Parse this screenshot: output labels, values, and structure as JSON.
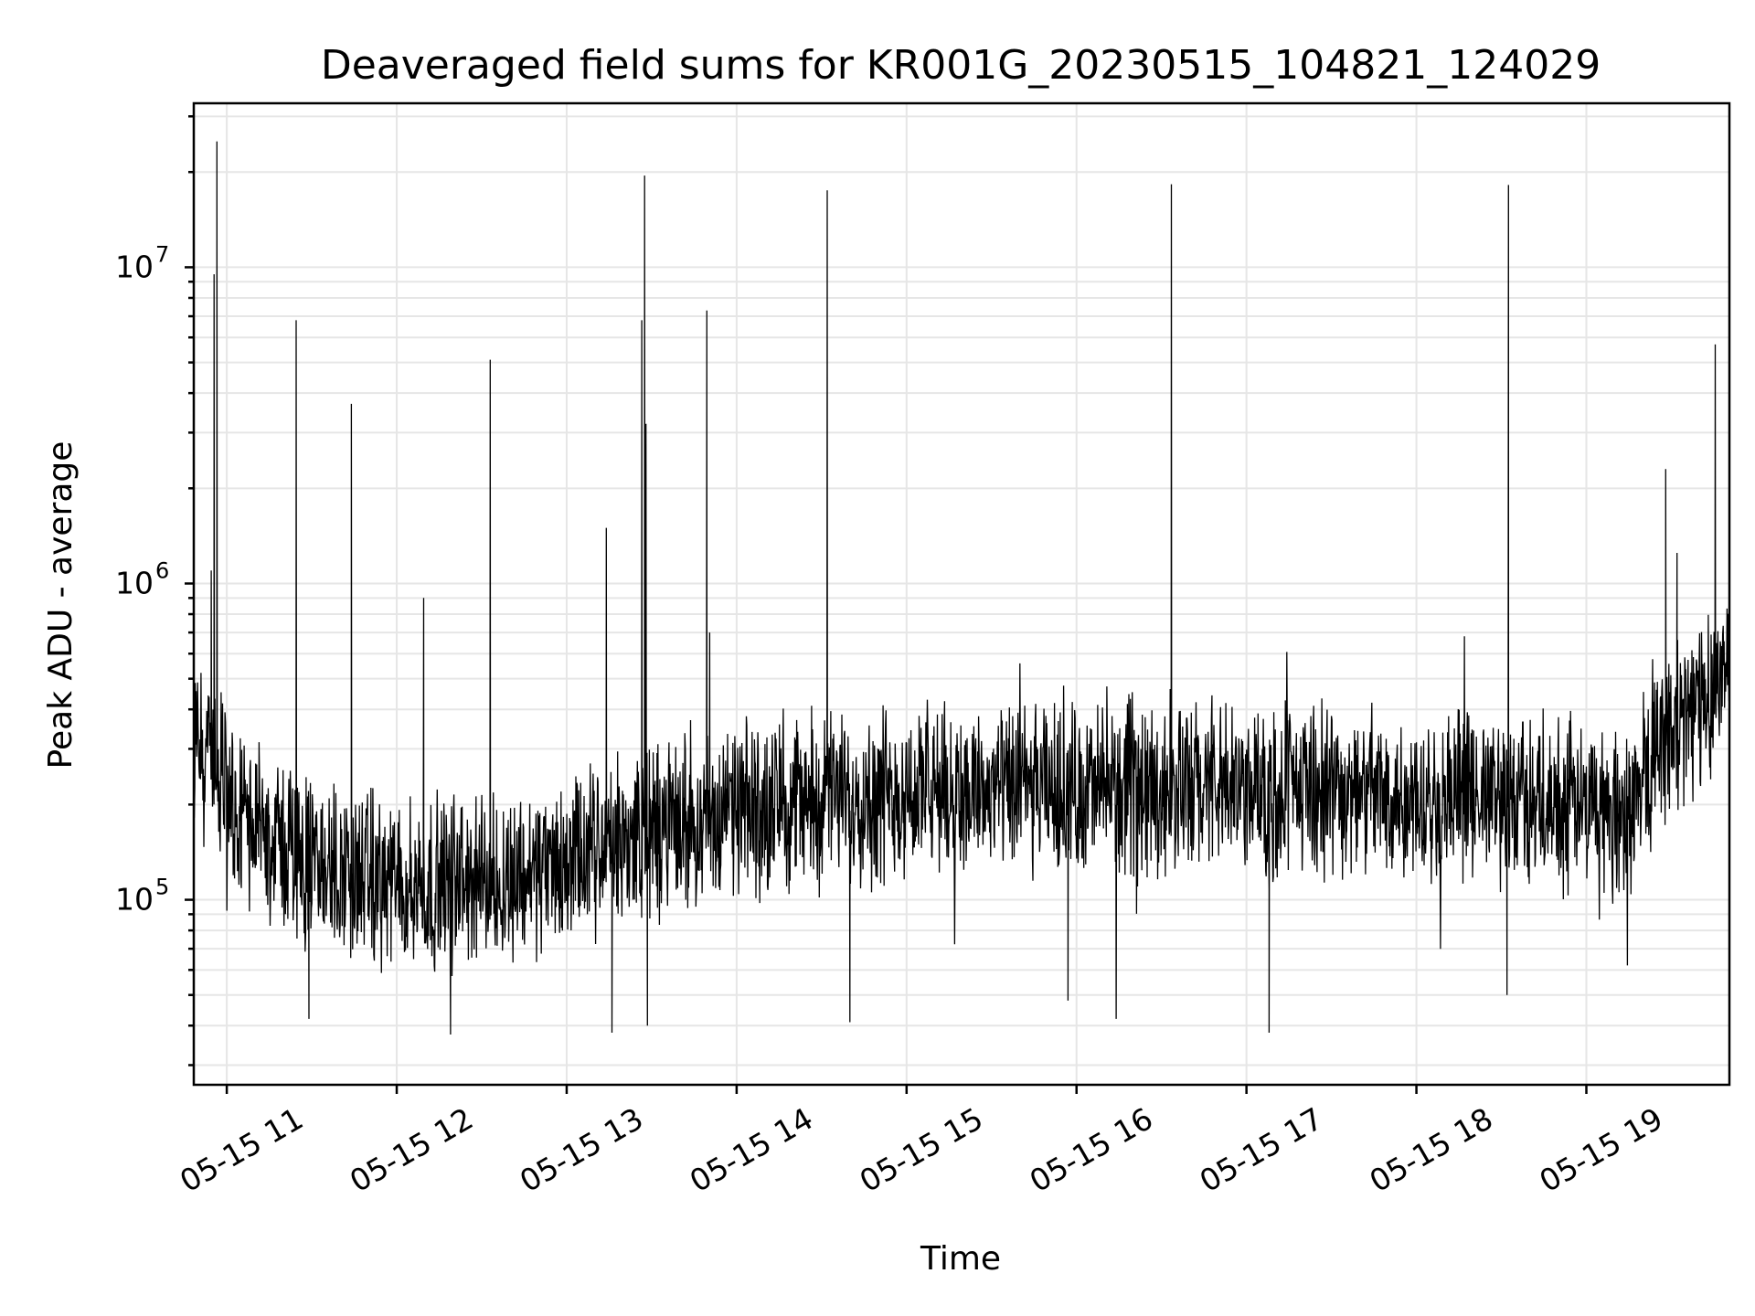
{
  "chart_data": {
    "type": "line",
    "title": "Deaveraged field sums for KR001G_20230515_104821_124029",
    "xlabel": "Time",
    "ylabel": "Peak ADU - average",
    "x_scale": "time",
    "y_scale": "log",
    "xlim": [
      "2023-05-15 10:48:21",
      "2023-05-15 19:50:30"
    ],
    "ylim": [
      26000,
      33000000
    ],
    "grid": true,
    "legend": null,
    "line_color": "#000000",
    "x_ticks": [
      {
        "value": "2023-05-15 11:00",
        "label": "05-15 11"
      },
      {
        "value": "2023-05-15 12:00",
        "label": "05-15 12"
      },
      {
        "value": "2023-05-15 13:00",
        "label": "05-15 13"
      },
      {
        "value": "2023-05-15 14:00",
        "label": "05-15 14"
      },
      {
        "value": "2023-05-15 15:00",
        "label": "05-15 15"
      },
      {
        "value": "2023-05-15 16:00",
        "label": "05-15 16"
      },
      {
        "value": "2023-05-15 17:00",
        "label": "05-15 17"
      },
      {
        "value": "2023-05-15 18:00",
        "label": "05-15 18"
      },
      {
        "value": "2023-05-15 19:00",
        "label": "05-15 19"
      }
    ],
    "y_ticks": [
      {
        "value": 100000,
        "base": "10",
        "exp": "5"
      },
      {
        "value": 1000000,
        "base": "10",
        "exp": "6"
      },
      {
        "value": 10000000,
        "base": "10",
        "exp": "7"
      }
    ],
    "baseline_profile": [
      {
        "t": "2023-05-15 10:48",
        "y": 340000
      },
      {
        "t": "2023-05-15 10:55",
        "y": 250000
      },
      {
        "t": "2023-05-15 11:05",
        "y": 180000
      },
      {
        "t": "2023-05-15 11:30",
        "y": 130000
      },
      {
        "t": "2023-05-15 12:00",
        "y": 110000
      },
      {
        "t": "2023-05-15 12:30",
        "y": 115000
      },
      {
        "t": "2023-05-15 13:00",
        "y": 130000
      },
      {
        "t": "2023-05-15 13:30",
        "y": 165000
      },
      {
        "t": "2023-05-15 14:00",
        "y": 190000
      },
      {
        "t": "2023-05-15 14:30",
        "y": 210000
      },
      {
        "t": "2023-05-15 15:00",
        "y": 220000
      },
      {
        "t": "2023-05-15 16:00",
        "y": 220000
      },
      {
        "t": "2023-05-15 17:00",
        "y": 225000
      },
      {
        "t": "2023-05-15 18:00",
        "y": 215000
      },
      {
        "t": "2023-05-15 19:00",
        "y": 200000
      },
      {
        "t": "2023-05-15 19:15",
        "y": 190000
      },
      {
        "t": "2023-05-15 19:25",
        "y": 300000
      },
      {
        "t": "2023-05-15 19:40",
        "y": 420000
      },
      {
        "t": "2023-05-15 19:50",
        "y": 560000
      }
    ],
    "spikes": [
      {
        "t": "2023-05-15 10:54:30",
        "y": 1100000
      },
      {
        "t": "2023-05-15 10:55:30",
        "y": 9500000
      },
      {
        "t": "2023-05-15 10:56:30",
        "y": 25000000
      },
      {
        "t": "2023-05-15 11:24:30",
        "y": 6800000
      },
      {
        "t": "2023-05-15 11:44:00",
        "y": 3700000
      },
      {
        "t": "2023-05-15 12:09:30",
        "y": 900000
      },
      {
        "t": "2023-05-15 12:33:00",
        "y": 5100000
      },
      {
        "t": "2023-05-15 13:14:00",
        "y": 1500000
      },
      {
        "t": "2023-05-15 13:26:30",
        "y": 6800000
      },
      {
        "t": "2023-05-15 13:27:30",
        "y": 19500000
      },
      {
        "t": "2023-05-15 13:28:00",
        "y": 3200000
      },
      {
        "t": "2023-05-15 13:49:30",
        "y": 7300000
      },
      {
        "t": "2023-05-15 13:50:30",
        "y": 700000
      },
      {
        "t": "2023-05-15 14:32:00",
        "y": 17500000
      },
      {
        "t": "2023-05-15 16:33:30",
        "y": 18300000
      },
      {
        "t": "2023-05-15 18:32:30",
        "y": 18200000
      },
      {
        "t": "2023-05-15 19:28:00",
        "y": 2300000
      },
      {
        "t": "2023-05-15 19:32:00",
        "y": 1250000
      },
      {
        "t": "2023-05-15 19:45:30",
        "y": 5700000
      }
    ],
    "dips": [
      {
        "t": "2023-05-15 11:29:00",
        "y": 42000
      },
      {
        "t": "2023-05-15 12:19:00",
        "y": 37500
      },
      {
        "t": "2023-05-15 13:16:00",
        "y": 38000
      },
      {
        "t": "2023-05-15 13:28:30",
        "y": 40000
      },
      {
        "t": "2023-05-15 14:40:00",
        "y": 41000
      },
      {
        "t": "2023-05-15 15:57:00",
        "y": 48000
      },
      {
        "t": "2023-05-15 16:14:00",
        "y": 42000
      },
      {
        "t": "2023-05-15 17:08:00",
        "y": 38000
      },
      {
        "t": "2023-05-15 18:32:00",
        "y": 50000
      },
      {
        "t": "2023-05-15 19:14:30",
        "y": 62000
      }
    ]
  }
}
